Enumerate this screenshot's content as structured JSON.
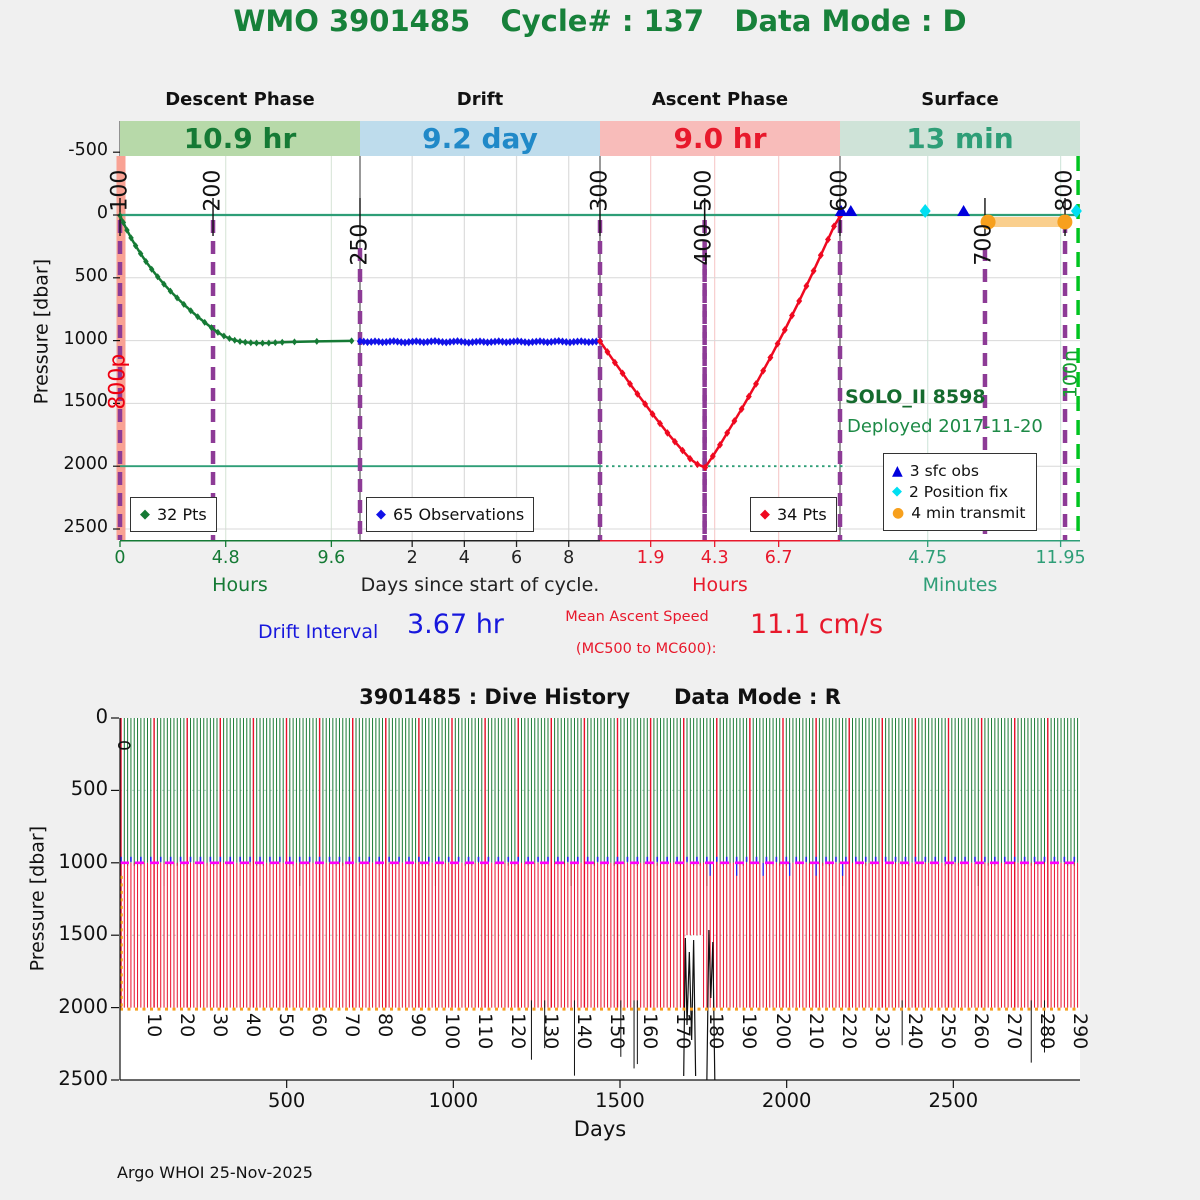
{
  "page": {
    "bg": "#f0f0f0",
    "title": "WMO 3901485   Cycle# : 137   Data Mode : D",
    "title_color": "#17813a",
    "footer": "Argo WHOI 25-Nov-2025"
  },
  "chart_data": [
    {
      "id": "phase_plot",
      "type": "line",
      "ylabel": "Pressure [dbar]",
      "ylim": [
        -750,
        2590
      ],
      "yticks": [
        -500,
        0,
        500,
        1000,
        1500,
        2000,
        2500
      ],
      "zero_line_pressure": 0,
      "deep_line_pressure": 2000,
      "phases": [
        {
          "name": "Descent Phase",
          "duration": "10.9 hr",
          "band_bg": "#b7d9a9",
          "text_color": "#157a35",
          "axis_label": "Hours",
          "axis_color": "#157a35",
          "grid_color": "#dce8dc",
          "ticks": [
            {
              "v": "0",
              "f": 0.0
            },
            {
              "v": "4.8",
              "f": 0.4404
            },
            {
              "v": "9.6",
              "f": 0.8807
            }
          ]
        },
        {
          "name": "Drift",
          "duration": "9.2 day",
          "band_bg": "#bedcec",
          "text_color": "#2089c8",
          "axis_label": "Days since start of cycle.",
          "axis_color": "#222222",
          "grid_color": "#dcdcdc",
          "ticks": [
            {
              "v": "2",
              "f": 0.2174
            },
            {
              "v": "4",
              "f": 0.4348
            },
            {
              "v": "6",
              "f": 0.6522
            },
            {
              "v": "8",
              "f": 0.8696
            }
          ]
        },
        {
          "name": "Ascent Phase",
          "duration": "9.0 hr",
          "band_bg": "#f8bcba",
          "text_color": "#e8192c",
          "axis_label": "Hours",
          "axis_color": "#e8192c",
          "grid_color": "#f7cdcd",
          "ticks": [
            {
              "v": "1.9",
              "f": 0.2111
            },
            {
              "v": "4.3",
              "f": 0.4778
            },
            {
              "v": "6.7",
              "f": 0.7444
            }
          ]
        },
        {
          "name": "Surface",
          "duration": "13 min",
          "band_bg": "#cfe3d8",
          "text_color": "#2e9e77",
          "axis_label": "Minutes",
          "axis_color": "#2e9e77",
          "grid_color": "#d4e8de",
          "ticks": [
            {
              "v": "4.75",
              "f": 0.3654
            },
            {
              "v": "11.95",
              "f": 0.9192
            }
          ]
        }
      ],
      "mc_markers": [
        {
          "label": "100",
          "f": 0.0,
          "side": "above"
        },
        {
          "label": "200",
          "f": 0.0969,
          "side": "above"
        },
        {
          "label": "250",
          "f": 0.25,
          "side": "below"
        },
        {
          "label": "300",
          "f": 0.5,
          "side": "above"
        },
        {
          "label": "400",
          "f": 0.609,
          "side": "below"
        },
        {
          "label": "500",
          "f": 0.609,
          "side": "above"
        },
        {
          "label": "600",
          "f": 0.75,
          "side": "above"
        },
        {
          "label": "700",
          "f": 0.901,
          "side": "below"
        },
        {
          "label": "800",
          "f": 0.9844,
          "side": "above"
        }
      ],
      "park_depth_label": "800p",
      "surface_end_label": "100n",
      "surface_end_f": 0.998,
      "series": {
        "descent": {
          "legend": "32 Pts",
          "color": "#157a35",
          "points": [
            [
              0.0,
              5
            ],
            [
              0.014,
              60
            ],
            [
              0.029,
              120
            ],
            [
              0.046,
              182
            ],
            [
              0.065,
              245
            ],
            [
              0.086,
              308
            ],
            [
              0.108,
              370
            ],
            [
              0.132,
              432
            ],
            [
              0.157,
              492
            ],
            [
              0.183,
              550
            ],
            [
              0.21,
              606
            ],
            [
              0.238,
              660
            ],
            [
              0.266,
              712
            ],
            [
              0.295,
              762
            ],
            [
              0.324,
              810
            ],
            [
              0.353,
              855
            ],
            [
              0.381,
              897
            ],
            [
              0.408,
              935
            ],
            [
              0.433,
              963
            ],
            [
              0.456,
              983
            ],
            [
              0.478,
              997
            ],
            [
              0.5,
              1007
            ],
            [
              0.522,
              1013
            ],
            [
              0.545,
              1017
            ],
            [
              0.569,
              1019
            ],
            [
              0.594,
              1020
            ],
            [
              0.62,
              1019
            ],
            [
              0.647,
              1016
            ],
            [
              0.676,
              1013
            ],
            [
              0.727,
              1010
            ],
            [
              0.82,
              1006
            ],
            [
              0.965,
              1002
            ]
          ]
        },
        "drift": {
          "legend": "65 Observations",
          "color": "#1212e8",
          "pressures": [
            1005,
            1008,
            1012,
            1010,
            1006,
            1009,
            1013,
            1011,
            1007,
            1004,
            1008,
            1012,
            1015,
            1011,
            1008,
            1005,
            1009,
            1013,
            1010,
            1006,
            1003,
            1007,
            1011,
            1014,
            1010,
            1007,
            1004,
            1008,
            1012,
            1016,
            1012,
            1009,
            1006,
            1010,
            1014,
            1011,
            1008,
            1005,
            1009,
            1013,
            1010,
            1007,
            1004,
            1008,
            1012,
            1015,
            1011,
            1008,
            1005,
            1009,
            1013,
            1010,
            1006,
            1003,
            1007,
            1011,
            1014,
            1010,
            1007,
            1005,
            1009,
            1012,
            1010,
            1007,
            1005
          ]
        },
        "ascent": {
          "legend": "34 Pts",
          "color": "#ef0920",
          "points": [
            [
              0.0,
              1005
            ],
            [
              0.031,
              1090
            ],
            [
              0.062,
              1175
            ],
            [
              0.094,
              1260
            ],
            [
              0.125,
              1345
            ],
            [
              0.156,
              1425
            ],
            [
              0.188,
              1505
            ],
            [
              0.219,
              1585
            ],
            [
              0.25,
              1660
            ],
            [
              0.281,
              1735
            ],
            [
              0.312,
              1805
            ],
            [
              0.344,
              1875
            ],
            [
              0.375,
              1940
            ],
            [
              0.406,
              1985
            ],
            [
              0.438,
              2010
            ],
            [
              0.47,
              1920
            ],
            [
              0.5,
              1830
            ],
            [
              0.53,
              1735
            ],
            [
              0.56,
              1640
            ],
            [
              0.59,
              1545
            ],
            [
              0.62,
              1445
            ],
            [
              0.65,
              1345
            ],
            [
              0.68,
              1240
            ],
            [
              0.71,
              1135
            ],
            [
              0.74,
              1025
            ],
            [
              0.77,
              915
            ],
            [
              0.8,
              800
            ],
            [
              0.83,
              685
            ],
            [
              0.86,
              565
            ],
            [
              0.89,
              445
            ],
            [
              0.92,
              320
            ],
            [
              0.95,
              195
            ],
            [
              0.975,
              90
            ],
            [
              1.0,
              10
            ]
          ]
        },
        "surface": {
          "sfc_obs": {
            "legend": "3 sfc obs",
            "color": "#0000dd",
            "f": [
              0.005,
              0.045,
              0.515
            ]
          },
          "position_fix": {
            "legend": "2 Position fix",
            "color": "#00dff2",
            "f": [
              0.355,
              0.985
            ]
          },
          "transmit": {
            "legend": "4 min transmit",
            "color": "#f7a01d",
            "f_from": 0.617,
            "f_to": 0.937
          }
        }
      },
      "annotations": {
        "float_model": "SOLO_II 8598",
        "deployed": "Deployed 2017-11-20",
        "drift_interval_label": "Drift Interval",
        "drift_interval_value": "3.67 hr",
        "ascent_speed_label_1": "Mean Ascent Speed",
        "ascent_speed_label_2": "(MC500 to MC600):",
        "ascent_speed_value": "11.1 cm/s"
      }
    },
    {
      "id": "dive_history",
      "type": "bar",
      "title": "3901485 : Dive History      Data Mode : R",
      "xlabel": "Days",
      "ylabel": "Pressure [dbar]",
      "xticks": [
        500,
        1000,
        1500,
        2000,
        2500
      ],
      "yticks": [
        0,
        500,
        1000,
        1500,
        2000,
        2500
      ],
      "xlim": [
        0,
        2880
      ],
      "ylim": [
        0,
        2500
      ],
      "n_cycles": 290,
      "days_per_cycle": 9.93,
      "park_pressure": 1000,
      "profile_pressure": 2000,
      "zero_label": "0",
      "cycle_labels": [
        10,
        20,
        30,
        40,
        50,
        60,
        70,
        80,
        90,
        100,
        110,
        120,
        130,
        140,
        150,
        160,
        170,
        180,
        190,
        200,
        210,
        220,
        230,
        240,
        250,
        260,
        270,
        280,
        290
      ],
      "deep_events": [
        {
          "cycle": 124,
          "pressure": 2360
        },
        {
          "cycle": 128,
          "pressure": 2280
        },
        {
          "cycle": 137,
          "pressure": 2470
        },
        {
          "cycle": 151,
          "pressure": 2340
        },
        {
          "cycle": 155,
          "pressure": 2420
        },
        {
          "cycle": 156,
          "pressure": 2390
        },
        {
          "cycle": 236,
          "pressure": 2260
        },
        {
          "cycle": 275,
          "pressure": 2380
        },
        {
          "cycle": 279,
          "pressure": 2310
        }
      ],
      "anomaly_cluster": {
        "cycle_from": 170,
        "cycle_to": 180,
        "pressure_top": 1500,
        "pressure_bottom": 2480
      },
      "descent_color": "#1a7a35",
      "profile_color": "#e8102c",
      "park_line_color": "#ff00ff",
      "bottom_line_color": "#f7a01d"
    }
  ]
}
